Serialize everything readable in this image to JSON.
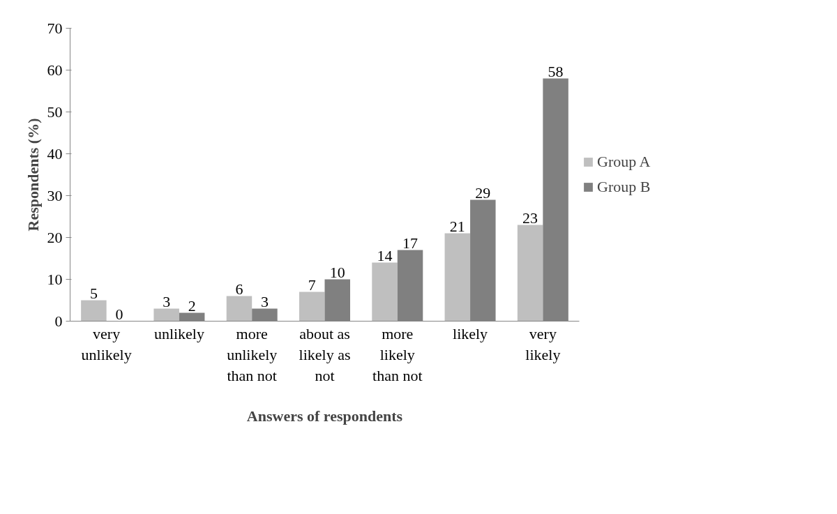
{
  "chart_data": {
    "type": "bar",
    "xlabel": "Answers of respondents",
    "ylabel": "Respondents (%)",
    "categories": [
      "very\nunlikely",
      "unlikely",
      "more\nunlikely\nthan not",
      "about as\nlikely as\nnot",
      "more\nlikely\nthan not",
      "likely",
      "very\nlikely"
    ],
    "series": [
      {
        "name": "Group A",
        "color": "#bfbfbf",
        "values": [
          5,
          3,
          6,
          7,
          14,
          21,
          23
        ]
      },
      {
        "name": "Group B",
        "color": "#808080",
        "values": [
          0,
          2,
          3,
          10,
          17,
          29,
          58
        ]
      }
    ],
    "ylim": [
      0,
      70
    ],
    "yticks": [
      0,
      10,
      20,
      30,
      40,
      50,
      60,
      70
    ],
    "grid": false,
    "legend": "right",
    "data_labels": true
  }
}
